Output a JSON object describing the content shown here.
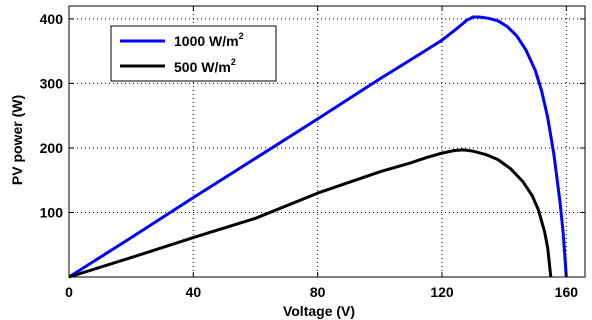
{
  "chart_data": {
    "type": "line",
    "xlabel": "Voltage (V)",
    "ylabel": "PV power (W)",
    "xlim": [
      0,
      166
    ],
    "ylim": [
      0,
      420
    ],
    "xticks": [
      0,
      40,
      80,
      120,
      160
    ],
    "yticks": [
      100,
      200,
      300,
      400
    ],
    "grid": true,
    "legend_position": "top-left",
    "series": [
      {
        "name": "1000 W/m",
        "name_superscript": "2",
        "color": "#0000ff",
        "points": [
          [
            0,
            0
          ],
          [
            20,
            61
          ],
          [
            40,
            123
          ],
          [
            60,
            184
          ],
          [
            80,
            245
          ],
          [
            100,
            307
          ],
          [
            110,
            337
          ],
          [
            115,
            352
          ],
          [
            120,
            367
          ],
          [
            125,
            386
          ],
          [
            128,
            398
          ],
          [
            130,
            403
          ],
          [
            132,
            403
          ],
          [
            135,
            401
          ],
          [
            138,
            397
          ],
          [
            141,
            388
          ],
          [
            144,
            374
          ],
          [
            147,
            352
          ],
          [
            150,
            320
          ],
          [
            152,
            289
          ],
          [
            154,
            247
          ],
          [
            156,
            190
          ],
          [
            158,
            115
          ],
          [
            159,
            68
          ],
          [
            160,
            0
          ]
        ]
      },
      {
        "name": "500 W/m",
        "name_superscript": "2",
        "color": "#000000",
        "points": [
          [
            0,
            0
          ],
          [
            20,
            30
          ],
          [
            40,
            61
          ],
          [
            60,
            91
          ],
          [
            80,
            130
          ],
          [
            100,
            163
          ],
          [
            110,
            177
          ],
          [
            115,
            185
          ],
          [
            120,
            192
          ],
          [
            124,
            196
          ],
          [
            127,
            197
          ],
          [
            130,
            195
          ],
          [
            134,
            190
          ],
          [
            138,
            182
          ],
          [
            142,
            168
          ],
          [
            146,
            148
          ],
          [
            149,
            126
          ],
          [
            151,
            104
          ],
          [
            153,
            70
          ],
          [
            154,
            45
          ],
          [
            155,
            0
          ]
        ]
      }
    ]
  }
}
